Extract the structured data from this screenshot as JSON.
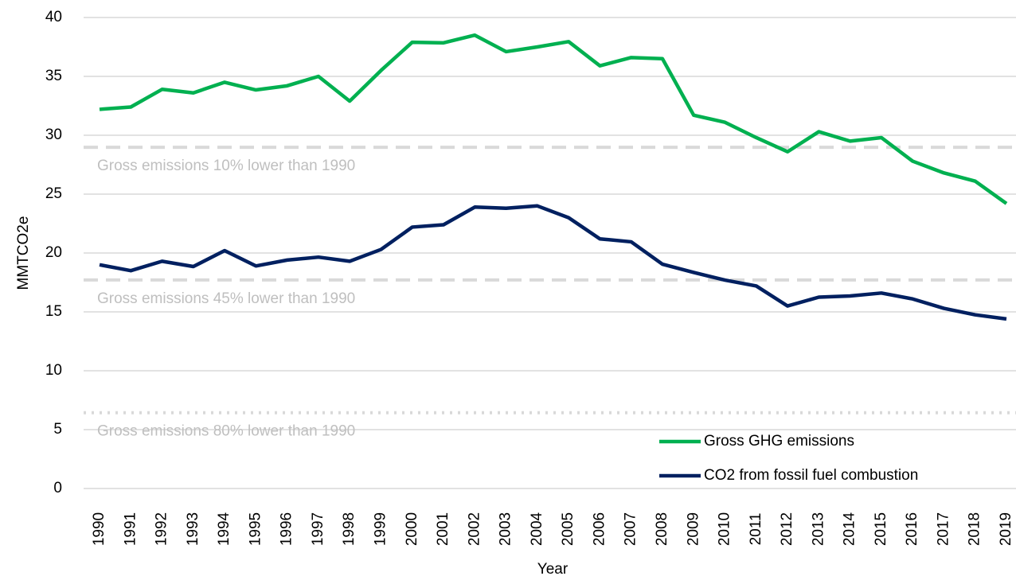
{
  "chart_data": {
    "type": "line",
    "x_label": "Year",
    "y_label": "MMTCO2e",
    "categories": [
      "1990",
      "1991",
      "1992",
      "1993",
      "1994",
      "1995",
      "1996",
      "1997",
      "1998",
      "1999",
      "2000",
      "2001",
      "2002",
      "2003",
      "2004",
      "2005",
      "2006",
      "2007",
      "2008",
      "2009",
      "2010",
      "2011",
      "2012",
      "2013",
      "2014",
      "2015",
      "2016",
      "2017",
      "2018",
      "2019"
    ],
    "series": [
      {
        "name": "Gross GHG emissions",
        "color": "#00b050",
        "values": [
          32.2,
          32.4,
          33.9,
          33.6,
          34.5,
          33.85,
          34.2,
          35.0,
          32.9,
          35.5,
          37.9,
          37.85,
          38.5,
          37.1,
          37.5,
          37.95,
          35.9,
          36.6,
          36.5,
          31.7,
          31.1,
          29.8,
          28.6,
          30.3,
          29.5,
          29.8,
          27.8,
          26.8,
          26.1,
          24.2
        ]
      },
      {
        "name": "CO2 from fossil fuel combustion",
        "color": "#002060",
        "values": [
          19.0,
          18.5,
          19.3,
          18.85,
          20.2,
          18.9,
          19.4,
          19.65,
          19.3,
          20.3,
          22.2,
          22.4,
          23.9,
          23.8,
          24.0,
          23.0,
          21.2,
          20.95,
          19.05,
          18.35,
          17.7,
          17.2,
          15.5,
          16.25,
          16.35,
          16.6,
          16.1,
          15.3,
          14.75,
          14.4
        ]
      }
    ],
    "reference_lines": [
      {
        "value": 28.98,
        "label": "Gross emissions 10% lower than 1990",
        "style": "dashed",
        "color": "#d9d9d9"
      },
      {
        "value": 17.71,
        "label": "Gross emissions 45% lower than 1990",
        "style": "dashed",
        "color": "#d9d9d9"
      },
      {
        "value": 6.44,
        "label": "Gross emissions 80% lower than 1990",
        "style": "dotted",
        "color": "#d9d9d9"
      }
    ],
    "ylim": [
      0,
      40
    ],
    "yticks": [
      0,
      5,
      10,
      15,
      20,
      25,
      30,
      35,
      40
    ],
    "grid": true,
    "legend": "lower right"
  }
}
